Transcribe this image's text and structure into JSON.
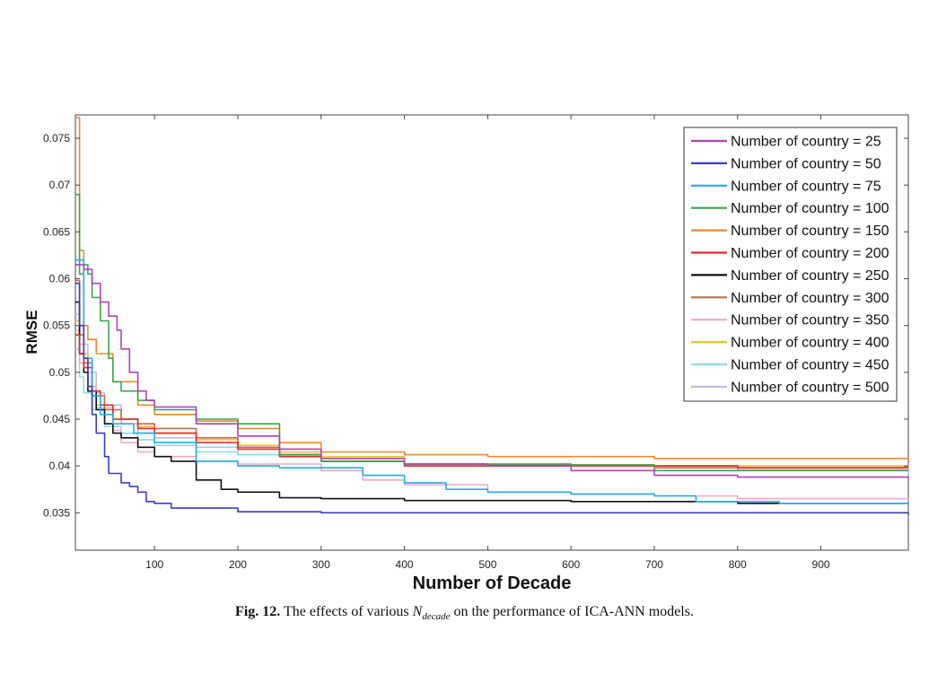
{
  "chart_data": {
    "type": "line",
    "xlabel": "Number of Decade",
    "ylabel": "RMSE",
    "xlim": [
      5,
      1005
    ],
    "ylim": [
      0.031,
      0.0775
    ],
    "xticks": [
      100,
      200,
      300,
      400,
      500,
      600,
      700,
      800,
      900
    ],
    "xtick_labels": [
      "100",
      "200",
      "300",
      "400",
      "500",
      "600",
      "700",
      "800",
      "900"
    ],
    "yticks": [
      0.035,
      0.04,
      0.045,
      0.05,
      0.055,
      0.06,
      0.065,
      0.07,
      0.075
    ],
    "ytick_labels": [
      "0.035",
      "0.04",
      "0.045",
      "0.05",
      "0.055",
      "0.06",
      "0.065",
      "0.07",
      "0.075"
    ],
    "grid": false,
    "legend_position": "top-right",
    "series": [
      {
        "name": "Number of country = 25",
        "color": "#b041b8",
        "points": [
          [
            5,
            0.0615
          ],
          [
            15,
            0.061
          ],
          [
            25,
            0.0595
          ],
          [
            35,
            0.0575
          ],
          [
            45,
            0.056
          ],
          [
            55,
            0.0545
          ],
          [
            60,
            0.0525
          ],
          [
            70,
            0.05
          ],
          [
            80,
            0.048
          ],
          [
            90,
            0.047
          ],
          [
            100,
            0.0463
          ],
          [
            150,
            0.0445
          ],
          [
            200,
            0.0432
          ],
          [
            250,
            0.0418
          ],
          [
            300,
            0.0408
          ],
          [
            400,
            0.0402
          ],
          [
            500,
            0.04
          ],
          [
            600,
            0.0395
          ],
          [
            700,
            0.039
          ],
          [
            800,
            0.0388
          ],
          [
            1005,
            0.0386
          ]
        ]
      },
      {
        "name": "Number of country = 50",
        "color": "#3b3bc9",
        "points": [
          [
            5,
            0.0595
          ],
          [
            10,
            0.055
          ],
          [
            15,
            0.0515
          ],
          [
            20,
            0.0485
          ],
          [
            25,
            0.0455
          ],
          [
            30,
            0.0435
          ],
          [
            40,
            0.041
          ],
          [
            45,
            0.0392
          ],
          [
            60,
            0.0382
          ],
          [
            70,
            0.0378
          ],
          [
            80,
            0.0372
          ],
          [
            90,
            0.0362
          ],
          [
            100,
            0.036
          ],
          [
            120,
            0.0355
          ],
          [
            200,
            0.0351
          ],
          [
            300,
            0.035
          ],
          [
            500,
            0.035
          ],
          [
            800,
            0.035
          ],
          [
            1005,
            0.0348
          ]
        ]
      },
      {
        "name": "Number of country = 75",
        "color": "#22aee6",
        "points": [
          [
            5,
            0.062
          ],
          [
            15,
            0.0515
          ],
          [
            25,
            0.0475
          ],
          [
            35,
            0.0455
          ],
          [
            50,
            0.0445
          ],
          [
            75,
            0.0435
          ],
          [
            100,
            0.0425
          ],
          [
            150,
            0.0405
          ],
          [
            200,
            0.04
          ],
          [
            250,
            0.0398
          ],
          [
            300,
            0.0398
          ],
          [
            350,
            0.039
          ],
          [
            400,
            0.0382
          ],
          [
            450,
            0.0375
          ],
          [
            500,
            0.0372
          ],
          [
            600,
            0.037
          ],
          [
            700,
            0.0368
          ],
          [
            750,
            0.0362
          ],
          [
            850,
            0.036
          ],
          [
            1005,
            0.036
          ]
        ]
      },
      {
        "name": "Number of country = 100",
        "color": "#3aa54b",
        "points": [
          [
            5,
            0.069
          ],
          [
            10,
            0.0605
          ],
          [
            15,
            0.0615
          ],
          [
            20,
            0.0605
          ],
          [
            25,
            0.058
          ],
          [
            35,
            0.0555
          ],
          [
            45,
            0.0515
          ],
          [
            50,
            0.049
          ],
          [
            60,
            0.048
          ],
          [
            80,
            0.047
          ],
          [
            100,
            0.046
          ],
          [
            150,
            0.045
          ],
          [
            200,
            0.0445
          ],
          [
            250,
            0.0412
          ],
          [
            300,
            0.0405
          ],
          [
            400,
            0.0402
          ],
          [
            500,
            0.0402
          ],
          [
            600,
            0.0401
          ],
          [
            700,
            0.0395
          ],
          [
            800,
            0.0395
          ],
          [
            1005,
            0.0395
          ]
        ]
      },
      {
        "name": "Number of country = 150",
        "color": "#f0882a",
        "points": [
          [
            5,
            0.0772
          ],
          [
            10,
            0.063
          ],
          [
            15,
            0.055
          ],
          [
            20,
            0.0535
          ],
          [
            30,
            0.052
          ],
          [
            50,
            0.049
          ],
          [
            80,
            0.0465
          ],
          [
            100,
            0.0455
          ],
          [
            150,
            0.0448
          ],
          [
            200,
            0.044
          ],
          [
            250,
            0.0425
          ],
          [
            300,
            0.0415
          ],
          [
            400,
            0.0412
          ],
          [
            500,
            0.041
          ],
          [
            700,
            0.0408
          ],
          [
            1005,
            0.0405
          ]
        ]
      },
      {
        "name": "Number of country = 200",
        "color": "#e02a2a",
        "points": [
          [
            5,
            0.054
          ],
          [
            10,
            0.052
          ],
          [
            15,
            0.0505
          ],
          [
            25,
            0.048
          ],
          [
            35,
            0.0465
          ],
          [
            50,
            0.045
          ],
          [
            80,
            0.044
          ],
          [
            100,
            0.0435
          ],
          [
            150,
            0.0425
          ],
          [
            200,
            0.0418
          ],
          [
            250,
            0.041
          ],
          [
            300,
            0.0405
          ],
          [
            400,
            0.04
          ],
          [
            500,
            0.04
          ],
          [
            800,
            0.0398
          ],
          [
            1005,
            0.0398
          ]
        ]
      },
      {
        "name": "Number of country = 250",
        "color": "#111111",
        "points": [
          [
            5,
            0.0575
          ],
          [
            10,
            0.052
          ],
          [
            15,
            0.05
          ],
          [
            20,
            0.048
          ],
          [
            30,
            0.046
          ],
          [
            40,
            0.0445
          ],
          [
            50,
            0.0435
          ],
          [
            60,
            0.043
          ],
          [
            80,
            0.042
          ],
          [
            100,
            0.041
          ],
          [
            120,
            0.0405
          ],
          [
            150,
            0.0385
          ],
          [
            180,
            0.0375
          ],
          [
            200,
            0.0372
          ],
          [
            250,
            0.0366
          ],
          [
            300,
            0.0365
          ],
          [
            400,
            0.0363
          ],
          [
            600,
            0.0362
          ],
          [
            800,
            0.036
          ],
          [
            1005,
            0.036
          ]
        ]
      },
      {
        "name": "Number of country = 300",
        "color": "#b8704a",
        "points": [
          [
            5,
            0.0598
          ],
          [
            10,
            0.054
          ],
          [
            15,
            0.051
          ],
          [
            25,
            0.0475
          ],
          [
            40,
            0.046
          ],
          [
            60,
            0.045
          ],
          [
            80,
            0.0445
          ],
          [
            100,
            0.044
          ],
          [
            150,
            0.043
          ],
          [
            200,
            0.042
          ],
          [
            250,
            0.0412
          ],
          [
            300,
            0.0405
          ],
          [
            400,
            0.0402
          ],
          [
            500,
            0.0401
          ],
          [
            700,
            0.0398
          ],
          [
            900,
            0.0398
          ],
          [
            1005,
            0.0398
          ]
        ]
      },
      {
        "name": "Number of country = 350",
        "color": "#f2a5c6",
        "points": [
          [
            5,
            0.0545
          ],
          [
            10,
            0.051
          ],
          [
            20,
            0.0485
          ],
          [
            30,
            0.0462
          ],
          [
            50,
            0.0438
          ],
          [
            60,
            0.0425
          ],
          [
            80,
            0.0415
          ],
          [
            100,
            0.041
          ],
          [
            150,
            0.0405
          ],
          [
            200,
            0.0402
          ],
          [
            300,
            0.0395
          ],
          [
            350,
            0.0385
          ],
          [
            400,
            0.038
          ],
          [
            500,
            0.0372
          ],
          [
            600,
            0.037
          ],
          [
            700,
            0.0368
          ],
          [
            800,
            0.0365
          ],
          [
            1005,
            0.0363
          ]
        ]
      },
      {
        "name": "Number of country = 400",
        "color": "#f2c12a",
        "points": [
          [
            5,
            0.0555
          ],
          [
            10,
            0.052
          ],
          [
            20,
            0.0485
          ],
          [
            30,
            0.0465
          ],
          [
            50,
            0.045
          ],
          [
            80,
            0.0442
          ],
          [
            100,
            0.0435
          ],
          [
            150,
            0.0428
          ],
          [
            200,
            0.0422
          ],
          [
            250,
            0.0415
          ],
          [
            300,
            0.041
          ],
          [
            400,
            0.0402
          ],
          [
            500,
            0.0401
          ],
          [
            700,
            0.04
          ],
          [
            1005,
            0.0398
          ]
        ]
      },
      {
        "name": "Number of country = 450",
        "color": "#8fdaee",
        "points": [
          [
            5,
            0.0525
          ],
          [
            10,
            0.0495
          ],
          [
            15,
            0.0478
          ],
          [
            25,
            0.046
          ],
          [
            40,
            0.0442
          ],
          [
            60,
            0.0435
          ],
          [
            80,
            0.0428
          ],
          [
            100,
            0.0422
          ],
          [
            150,
            0.0415
          ],
          [
            200,
            0.0412
          ],
          [
            300,
            0.0405
          ],
          [
            400,
            0.04
          ],
          [
            600,
            0.04
          ],
          [
            800,
            0.0398
          ],
          [
            1005,
            0.0392
          ]
        ]
      },
      {
        "name": "Number of country = 500",
        "color": "#c7b9e2",
        "points": [
          [
            5,
            0.0562
          ],
          [
            10,
            0.053
          ],
          [
            20,
            0.05
          ],
          [
            30,
            0.0478
          ],
          [
            40,
            0.0465
          ],
          [
            60,
            0.0445
          ],
          [
            80,
            0.0435
          ],
          [
            100,
            0.043
          ],
          [
            150,
            0.042
          ],
          [
            200,
            0.0412
          ],
          [
            300,
            0.0408
          ],
          [
            400,
            0.0402
          ],
          [
            600,
            0.04
          ],
          [
            800,
            0.0396
          ],
          [
            1005,
            0.039
          ]
        ]
      }
    ]
  },
  "caption": {
    "fig_label": "Fig. 12.",
    "text_before": "The effects of various",
    "symbol": "N",
    "subscript": "decade",
    "text_after": "on the performance of ICA-ANN models."
  }
}
